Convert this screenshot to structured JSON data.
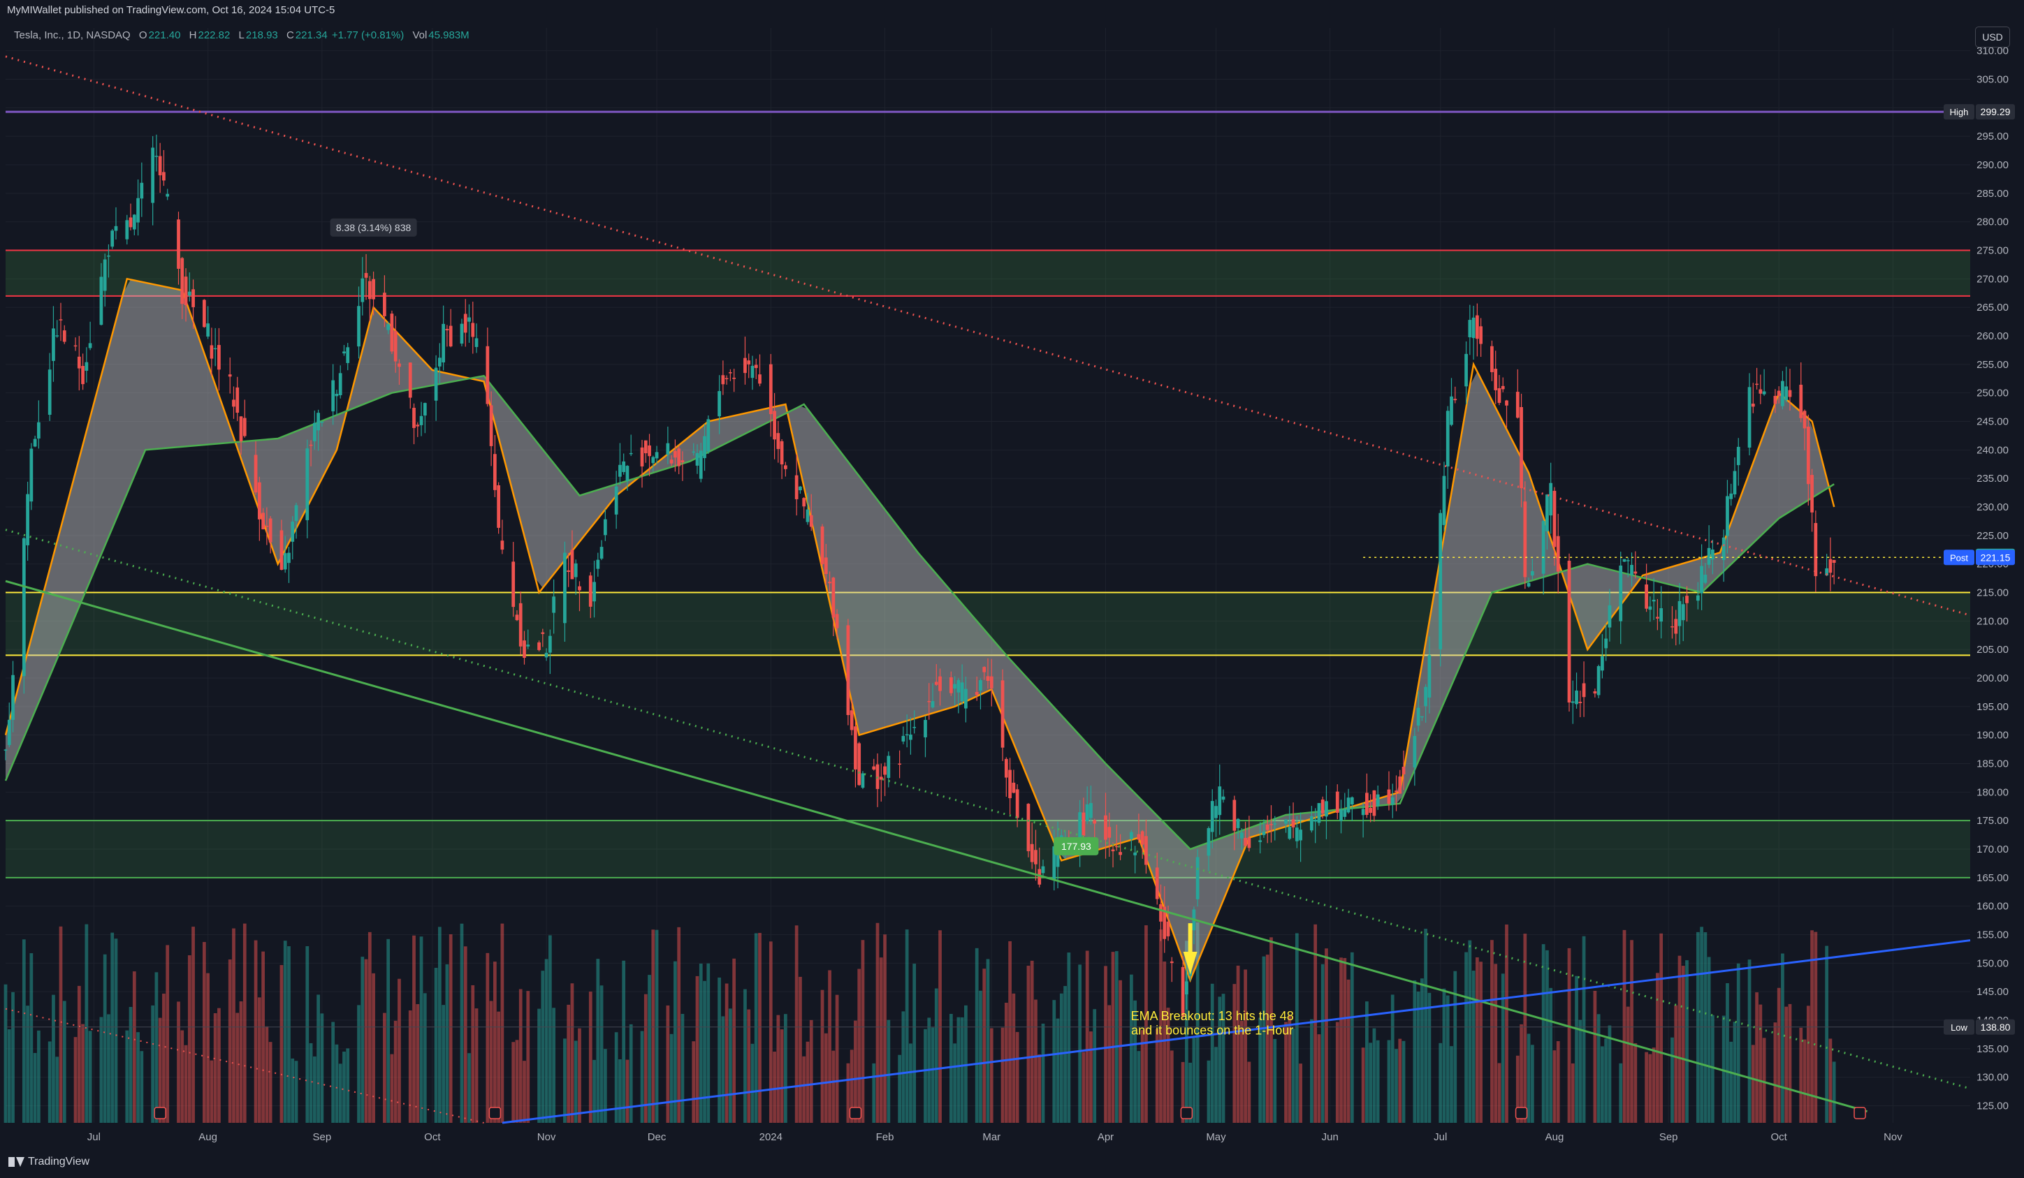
{
  "header": {
    "published": "MyMIWallet published on TradingView.com, Oct 16, 2024 15:04 UTC-5",
    "symbol": "Tesla, Inc., 1D, NASDAQ",
    "open_label": "O",
    "open": "221.40",
    "high_label": "H",
    "high": "222.82",
    "low_label": "L",
    "low": "218.93",
    "close_label": "C",
    "close": "221.34",
    "change": "+1.77 (+0.81%)",
    "vol_label": "Vol",
    "vol": "45.983M",
    "currency": "USD"
  },
  "footer": {
    "brand": "TradingView"
  },
  "colors": {
    "background": "#131722",
    "up": "#26a69a",
    "down": "#ef5350",
    "purple_line": "#7e57c2",
    "resistance_zone": "#f23645",
    "yellow_zone": "#ffeb3b",
    "green_zone": "#4caf50",
    "blue_trend": "#2962ff",
    "ema_fast": "#ff9800",
    "ema_slow": "#4caf50"
  },
  "chart_data": {
    "type": "candlestick",
    "title": "Tesla, Inc., 1D, NASDAQ",
    "ylim": [
      122,
      314
    ],
    "y_ticks": [
      125,
      130,
      135,
      140,
      145,
      150,
      155,
      160,
      165,
      170,
      175,
      180,
      185,
      190,
      195,
      200,
      205,
      210,
      215,
      220,
      225,
      230,
      235,
      240,
      245,
      250,
      255,
      260,
      265,
      270,
      275,
      280,
      285,
      290,
      295,
      300,
      305,
      310
    ],
    "x_labels": [
      "Jul",
      "Aug",
      "Sep",
      "Oct",
      "Nov",
      "Dec",
      "2024",
      "Feb",
      "Mar",
      "Apr",
      "May",
      "Jun",
      "Jul",
      "Aug",
      "Sep",
      "Oct",
      "Nov"
    ],
    "x_label_dates": [
      "2023-07-01",
      "2023-08-01",
      "2023-09-01",
      "2023-10-01",
      "2023-11-01",
      "2023-12-01",
      "2024-01-01",
      "2024-02-01",
      "2024-03-01",
      "2024-04-01",
      "2024-05-01",
      "2024-06-01",
      "2024-07-01",
      "2024-08-01",
      "2024-09-01",
      "2024-10-01",
      "2024-11-01"
    ],
    "x_range": [
      "2023-06-07",
      "2024-11-22"
    ],
    "price_path": [
      [
        "2023-06-07",
        186
      ],
      [
        "2023-06-14",
        240
      ],
      [
        "2023-06-21",
        262
      ],
      [
        "2023-06-28",
        254
      ],
      [
        "2023-07-05",
        276
      ],
      [
        "2023-07-12",
        280
      ],
      [
        "2023-07-18",
        294
      ],
      [
        "2023-07-25",
        268
      ],
      [
        "2023-08-01",
        260
      ],
      [
        "2023-08-08",
        249
      ],
      [
        "2023-08-15",
        230
      ],
      [
        "2023-08-21",
        217
      ],
      [
        "2023-08-29",
        242
      ],
      [
        "2023-09-05",
        252
      ],
      [
        "2023-09-12",
        270
      ],
      [
        "2023-09-19",
        262
      ],
      [
        "2023-09-27",
        242
      ],
      [
        "2023-10-04",
        260
      ],
      [
        "2023-10-11",
        262
      ],
      [
        "2023-10-16",
        250
      ],
      [
        "2023-10-19",
        225
      ],
      [
        "2023-10-26",
        205
      ],
      [
        "2023-11-01",
        206
      ],
      [
        "2023-11-06",
        221
      ],
      [
        "2023-11-13",
        215
      ],
      [
        "2023-11-20",
        236
      ],
      [
        "2023-11-28",
        240
      ],
      [
        "2023-12-05",
        239
      ],
      [
        "2023-12-12",
        237
      ],
      [
        "2023-12-19",
        253
      ],
      [
        "2023-12-28",
        255
      ],
      [
        "2024-01-04",
        239
      ],
      [
        "2024-01-11",
        228
      ],
      [
        "2024-01-18",
        213
      ],
      [
        "2024-01-25",
        182
      ],
      [
        "2024-02-01",
        183
      ],
      [
        "2024-02-08",
        190
      ],
      [
        "2024-02-15",
        199
      ],
      [
        "2024-02-22",
        197
      ],
      [
        "2024-02-29",
        201
      ],
      [
        "2024-03-07",
        178
      ],
      [
        "2024-03-14",
        164
      ],
      [
        "2024-03-21",
        172
      ],
      [
        "2024-03-28",
        176
      ],
      [
        "2024-04-04",
        171
      ],
      [
        "2024-04-11",
        171
      ],
      [
        "2024-04-17",
        155
      ],
      [
        "2024-04-22",
        143
      ],
      [
        "2024-04-26",
        168
      ],
      [
        "2024-05-02",
        180
      ],
      [
        "2024-05-09",
        172
      ],
      [
        "2024-05-16",
        173
      ],
      [
        "2024-05-23",
        174
      ],
      [
        "2024-05-30",
        178
      ],
      [
        "2024-06-06",
        177
      ],
      [
        "2024-06-13",
        178
      ],
      [
        "2024-06-20",
        182
      ],
      [
        "2024-06-27",
        197
      ],
      [
        "2024-07-03",
        245
      ],
      [
        "2024-07-10",
        263
      ],
      [
        "2024-07-15",
        252
      ],
      [
        "2024-07-22",
        246
      ],
      [
        "2024-07-24",
        216
      ],
      [
        "2024-07-31",
        232
      ],
      [
        "2024-08-05",
        198
      ],
      [
        "2024-08-12",
        197
      ],
      [
        "2024-08-19",
        222
      ],
      [
        "2024-08-26",
        213
      ],
      [
        "2024-09-03",
        210
      ],
      [
        "2024-09-09",
        216
      ],
      [
        "2024-09-16",
        227
      ],
      [
        "2024-09-23",
        250
      ],
      [
        "2024-09-30",
        249
      ],
      [
        "2024-10-04",
        251
      ],
      [
        "2024-10-08",
        244
      ],
      [
        "2024-10-11",
        218
      ],
      [
        "2024-10-16",
        221
      ]
    ],
    "ribbon": {
      "fast": [
        [
          "2023-06-07",
          190
        ],
        [
          "2023-07-10",
          270
        ],
        [
          "2023-07-25",
          268
        ],
        [
          "2023-08-20",
          220
        ],
        [
          "2023-09-05",
          240
        ],
        [
          "2023-09-15",
          265
        ],
        [
          "2023-10-01",
          254
        ],
        [
          "2023-10-15",
          252
        ],
        [
          "2023-10-30",
          215
        ],
        [
          "2023-11-20",
          232
        ],
        [
          "2023-12-15",
          245
        ],
        [
          "2024-01-05",
          248
        ],
        [
          "2024-01-25",
          190
        ],
        [
          "2024-02-20",
          195
        ],
        [
          "2024-03-01",
          198
        ],
        [
          "2024-03-20",
          168
        ],
        [
          "2024-04-10",
          172
        ],
        [
          "2024-04-24",
          147
        ],
        [
          "2024-05-10",
          172
        ],
        [
          "2024-06-20",
          180
        ],
        [
          "2024-07-10",
          255
        ],
        [
          "2024-07-25",
          236
        ],
        [
          "2024-08-10",
          205
        ],
        [
          "2024-08-25",
          218
        ],
        [
          "2024-09-15",
          222
        ],
        [
          "2024-10-01",
          250
        ],
        [
          "2024-10-10",
          245
        ],
        [
          "2024-10-16",
          230
        ]
      ],
      "slow": [
        [
          "2023-06-07",
          182
        ],
        [
          "2023-07-15",
          240
        ],
        [
          "2023-08-20",
          242
        ],
        [
          "2023-09-20",
          250
        ],
        [
          "2023-10-15",
          253
        ],
        [
          "2023-11-10",
          232
        ],
        [
          "2023-12-10",
          238
        ],
        [
          "2024-01-10",
          248
        ],
        [
          "2024-02-10",
          222
        ],
        [
          "2024-03-05",
          204
        ],
        [
          "2024-04-01",
          185
        ],
        [
          "2024-04-24",
          170
        ],
        [
          "2024-05-20",
          176
        ],
        [
          "2024-06-20",
          178
        ],
        [
          "2024-07-15",
          215
        ],
        [
          "2024-08-10",
          220
        ],
        [
          "2024-09-10",
          215
        ],
        [
          "2024-10-01",
          228
        ],
        [
          "2024-10-16",
          234
        ]
      ]
    },
    "volume": {
      "ylim": [
        0,
        100
      ],
      "bars_seed": 7
    },
    "levels": [
      {
        "name": "high-line",
        "value": 299.29,
        "label": "High",
        "price_label": "299.29"
      },
      {
        "name": "low-line",
        "value": 138.8,
        "label": "Low",
        "price_label": "138.80"
      },
      {
        "name": "last-price",
        "value": 221.34,
        "price_label": "221.34"
      },
      {
        "name": "post-price",
        "value": 221.15,
        "label": "Post",
        "price_label": "221.15"
      }
    ],
    "zones": [
      {
        "name": "resistance-zone",
        "from": 267,
        "to": 275
      },
      {
        "name": "yellow-support-zone",
        "from": 204,
        "to": 215
      },
      {
        "name": "green-support-zone",
        "from": 165,
        "to": 175
      }
    ],
    "annotations": {
      "measure": "8.38 (3.14%) 838",
      "price_tag": "177.93",
      "ema_note_line1": "EMA Breakout: 13 hits the 48",
      "ema_note_line2": "and it bounces on the 1-Hour"
    },
    "events_earnings": [
      "2023-07-19",
      "2023-10-18",
      "2024-01-24",
      "2024-04-23",
      "2024-07-23",
      "2024-10-23"
    ]
  }
}
